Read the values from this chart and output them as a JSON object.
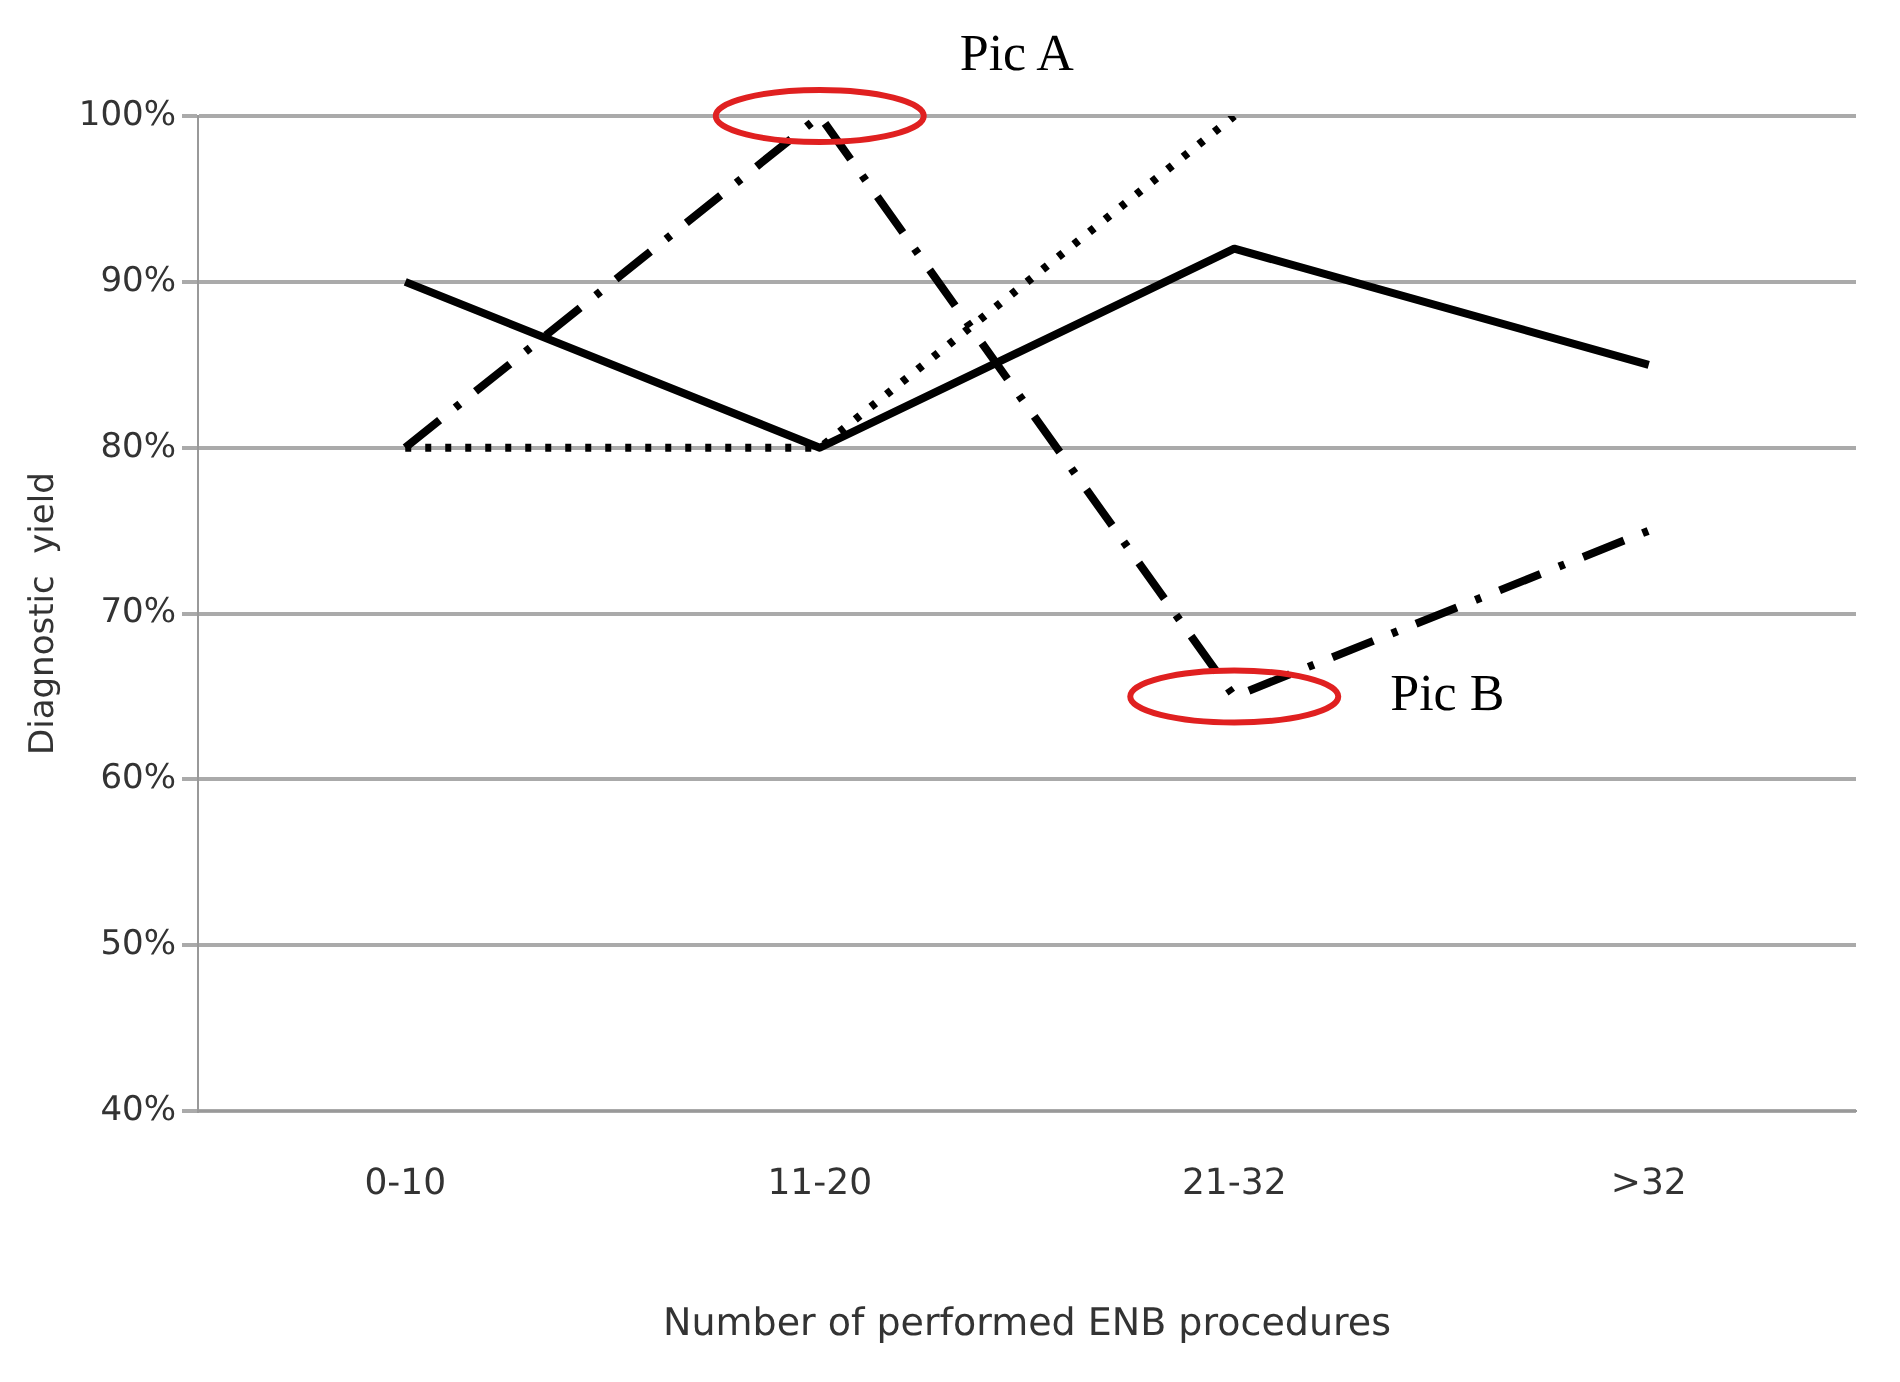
{
  "chart_data": {
    "type": "line",
    "xlabel": "Number of performed ENB procedures",
    "ylabel": "Diagnostic  yield",
    "categories": [
      "0-10",
      "11-20",
      "21-32",
      ">32"
    ],
    "series": [
      {
        "color": "#000000",
        "line_style": "solid",
        "values": [
          90,
          80,
          92,
          85
        ]
      },
      {
        "color": "#000000",
        "line_style": "dashed",
        "values": [
          80,
          100,
          65,
          75
        ]
      },
      {
        "color": "#000000",
        "line_style": "dotted",
        "values": [
          80,
          80,
          100,
          null
        ]
      }
    ],
    "ylim": [
      40,
      100
    ],
    "yticks": [
      {
        "value": 40,
        "label": "40%"
      },
      {
        "value": 50,
        "label": "50%"
      },
      {
        "value": 60,
        "label": "60%"
      },
      {
        "value": 70,
        "label": "70%"
      },
      {
        "value": 80,
        "label": "80%"
      },
      {
        "value": 90,
        "label": "90%"
      },
      {
        "value": 100,
        "label": "100%"
      }
    ],
    "grid": "y",
    "legend": false,
    "marker": "none",
    "annotations": [
      {
        "text": "Pic A",
        "x": "11-20",
        "y": 100
      },
      {
        "text": "Pic B",
        "x": "21-32",
        "y": 65
      }
    ]
  }
}
